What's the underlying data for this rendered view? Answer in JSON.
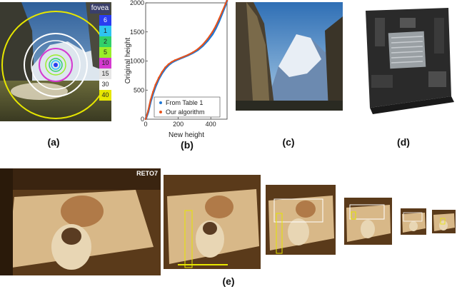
{
  "figure": {
    "panel_labels": [
      "(a)",
      "(b)",
      "(c)",
      "(d)",
      "(e)"
    ]
  },
  "panel_a": {
    "fovea_label": "fovea",
    "scale_values": [
      "6",
      "1",
      "2",
      "5",
      "10",
      "15",
      "30",
      "40"
    ],
    "scale_colors": [
      "#2a3cf0",
      "#2ec4f0",
      "#31d06a",
      "#9aee2a",
      "#d53ad0",
      "#e6e6e6",
      "#ffffff",
      "#e6e600"
    ]
  },
  "panel_e": {
    "badge": "RETO7"
  },
  "chart_data": {
    "type": "scatter",
    "xlabel": "New height",
    "ylabel": "Original height",
    "xlim": [
      0,
      500
    ],
    "ylim": [
      0,
      2000
    ],
    "xticks": [
      "0",
      "200",
      "400"
    ],
    "yticks": [
      "0",
      "500",
      "1000",
      "1500",
      "2000"
    ],
    "legend_position": "bottom-right",
    "series": [
      {
        "name": "From Table 1",
        "color": "#1f77d4",
        "x": [
          0,
          15,
          30,
          45,
          60,
          80,
          100,
          120,
          140,
          160,
          180,
          200,
          230,
          260,
          290,
          320,
          350,
          380,
          410,
          430,
          450,
          470,
          490,
          500
        ],
        "y": [
          0,
          120,
          300,
          440,
          560,
          690,
          790,
          870,
          930,
          975,
          1005,
          1030,
          1065,
          1100,
          1140,
          1190,
          1260,
          1350,
          1460,
          1560,
          1680,
          1820,
          1960,
          2040
        ]
      },
      {
        "name": "Our algorithm",
        "color": "#e8521a",
        "x": [
          0,
          15,
          30,
          45,
          60,
          80,
          100,
          120,
          140,
          160,
          180,
          200,
          230,
          260,
          290,
          320,
          350,
          380,
          410,
          430,
          450,
          470,
          490,
          500
        ],
        "y": [
          0,
          140,
          330,
          470,
          590,
          710,
          810,
          890,
          945,
          985,
          1015,
          1035,
          1070,
          1105,
          1150,
          1205,
          1280,
          1380,
          1500,
          1600,
          1720,
          1850,
          1980,
          2040
        ]
      }
    ]
  }
}
